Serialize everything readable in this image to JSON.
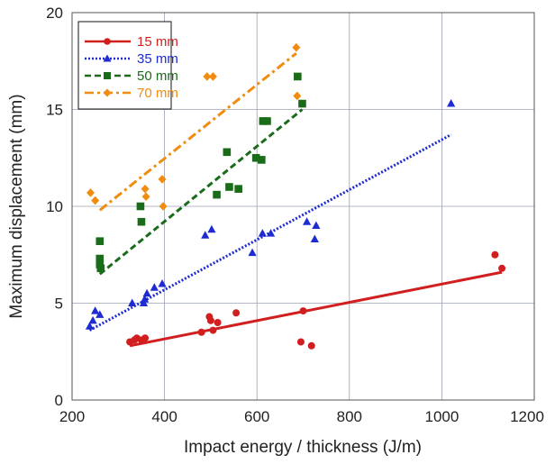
{
  "chart_data": {
    "type": "scatter",
    "xlabel": "Impact energy / thickness (J/m)",
    "ylabel": "Maximum displacement (mm)",
    "xlim": [
      200,
      1200
    ],
    "ylim": [
      0,
      20
    ],
    "xticks": [
      "200",
      "400",
      "600",
      "800",
      "1000",
      "1200"
    ],
    "yticks": [
      "0",
      "5",
      "10",
      "15",
      "20"
    ],
    "grid": true,
    "legend_position": "top-left",
    "series": [
      {
        "name": "15 mm",
        "color": "#d11f1f",
        "marker": "circle",
        "line_style": "solid",
        "points": [
          [
            325,
            3.0
          ],
          [
            335,
            3.1
          ],
          [
            340,
            3.2
          ],
          [
            350,
            3.1
          ],
          [
            358,
            3.2
          ],
          [
            480,
            3.5
          ],
          [
            497,
            4.3
          ],
          [
            500,
            4.1
          ],
          [
            505,
            3.6
          ],
          [
            515,
            4.0
          ],
          [
            555,
            4.5
          ],
          [
            695,
            3.0
          ],
          [
            700,
            4.6
          ],
          [
            718,
            2.8
          ],
          [
            1115,
            7.5
          ],
          [
            1130,
            6.8
          ]
        ],
        "fit": [
          [
            325,
            2.8
          ],
          [
            1130,
            6.6
          ]
        ]
      },
      {
        "name": "35 mm",
        "color": "#1e2bd1",
        "marker": "triangle",
        "line_style": "dotted",
        "points": [
          [
            238,
            3.8
          ],
          [
            245,
            4.1
          ],
          [
            250,
            4.6
          ],
          [
            260,
            4.4
          ],
          [
            330,
            5.0
          ],
          [
            355,
            5.0
          ],
          [
            357,
            5.2
          ],
          [
            362,
            5.5
          ],
          [
            378,
            5.8
          ],
          [
            395,
            6.0
          ],
          [
            488,
            8.5
          ],
          [
            502,
            8.8
          ],
          [
            590,
            7.6
          ],
          [
            612,
            8.6
          ],
          [
            630,
            8.6
          ],
          [
            708,
            9.2
          ],
          [
            725,
            8.3
          ],
          [
            728,
            9.0
          ],
          [
            1020,
            15.3
          ]
        ],
        "fit": [
          [
            238,
            3.6
          ],
          [
            1020,
            13.7
          ]
        ]
      },
      {
        "name": "50 mm",
        "color": "#1a6b1a",
        "marker": "square",
        "line_style": "dashed",
        "points": [
          [
            260,
            8.2
          ],
          [
            260,
            7.3
          ],
          [
            260,
            7.0
          ],
          [
            262,
            6.8
          ],
          [
            348,
            10.0
          ],
          [
            350,
            9.2
          ],
          [
            513,
            10.6
          ],
          [
            535,
            12.8
          ],
          [
            540,
            11.0
          ],
          [
            560,
            10.9
          ],
          [
            598,
            12.5
          ],
          [
            610,
            12.4
          ],
          [
            613,
            14.4
          ],
          [
            622,
            14.4
          ],
          [
            688,
            16.7
          ],
          [
            698,
            15.3
          ]
        ],
        "fit": [
          [
            260,
            6.5
          ],
          [
            698,
            15.0
          ]
        ]
      },
      {
        "name": "70 mm",
        "color": "#f08c10",
        "marker": "diamond",
        "line_style": "dashdot",
        "points": [
          [
            240,
            10.7
          ],
          [
            250,
            10.3
          ],
          [
            358,
            10.9
          ],
          [
            360,
            10.5
          ],
          [
            395,
            11.4
          ],
          [
            397,
            10.0
          ],
          [
            492,
            16.7
          ],
          [
            505,
            16.7
          ],
          [
            685,
            18.2
          ],
          [
            687,
            15.7
          ]
        ],
        "fit": [
          [
            260,
            9.8
          ],
          [
            685,
            17.9
          ]
        ]
      }
    ]
  }
}
